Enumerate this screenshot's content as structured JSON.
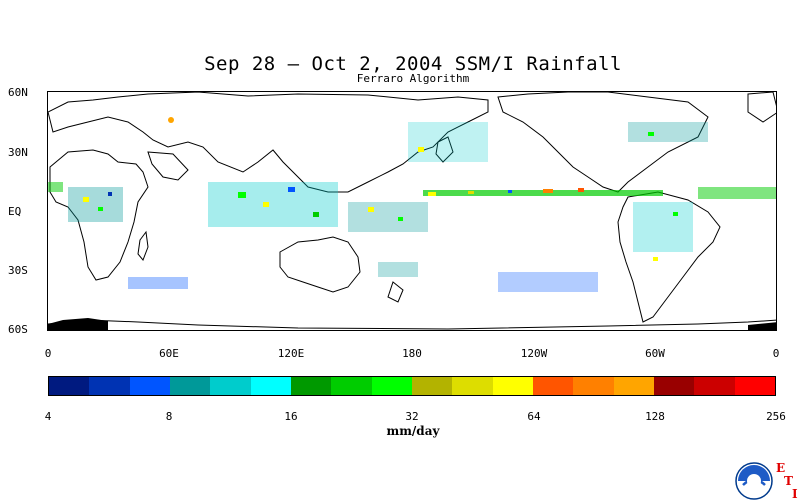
{
  "title": "Sep 28 – Oct 2, 2004 SSM/I Rainfall",
  "subtitle": "Ferraro Algorithm",
  "lat_labels": [
    "60N",
    "30N",
    "EQ",
    "30S",
    "60S"
  ],
  "lon_labels": [
    "0",
    "60E",
    "120E",
    "180",
    "120W",
    "60W",
    "0"
  ],
  "colorbar": {
    "colors": [
      "#001a80",
      "#0033b3",
      "#0055ff",
      "#009999",
      "#00cccc",
      "#00ffff",
      "#009900",
      "#00cc00",
      "#00ff00",
      "#b3b300",
      "#dddd00",
      "#ffff00",
      "#ff5500",
      "#ff8000",
      "#ffa500",
      "#990000",
      "#cc0000",
      "#ff0000"
    ],
    "ticks": [
      "4",
      "8",
      "16",
      "32",
      "64",
      "128",
      "256"
    ],
    "unit": "mm/day"
  },
  "logo": {
    "name": "NOAA",
    "letters": [
      "E",
      "T",
      "I"
    ]
  }
}
